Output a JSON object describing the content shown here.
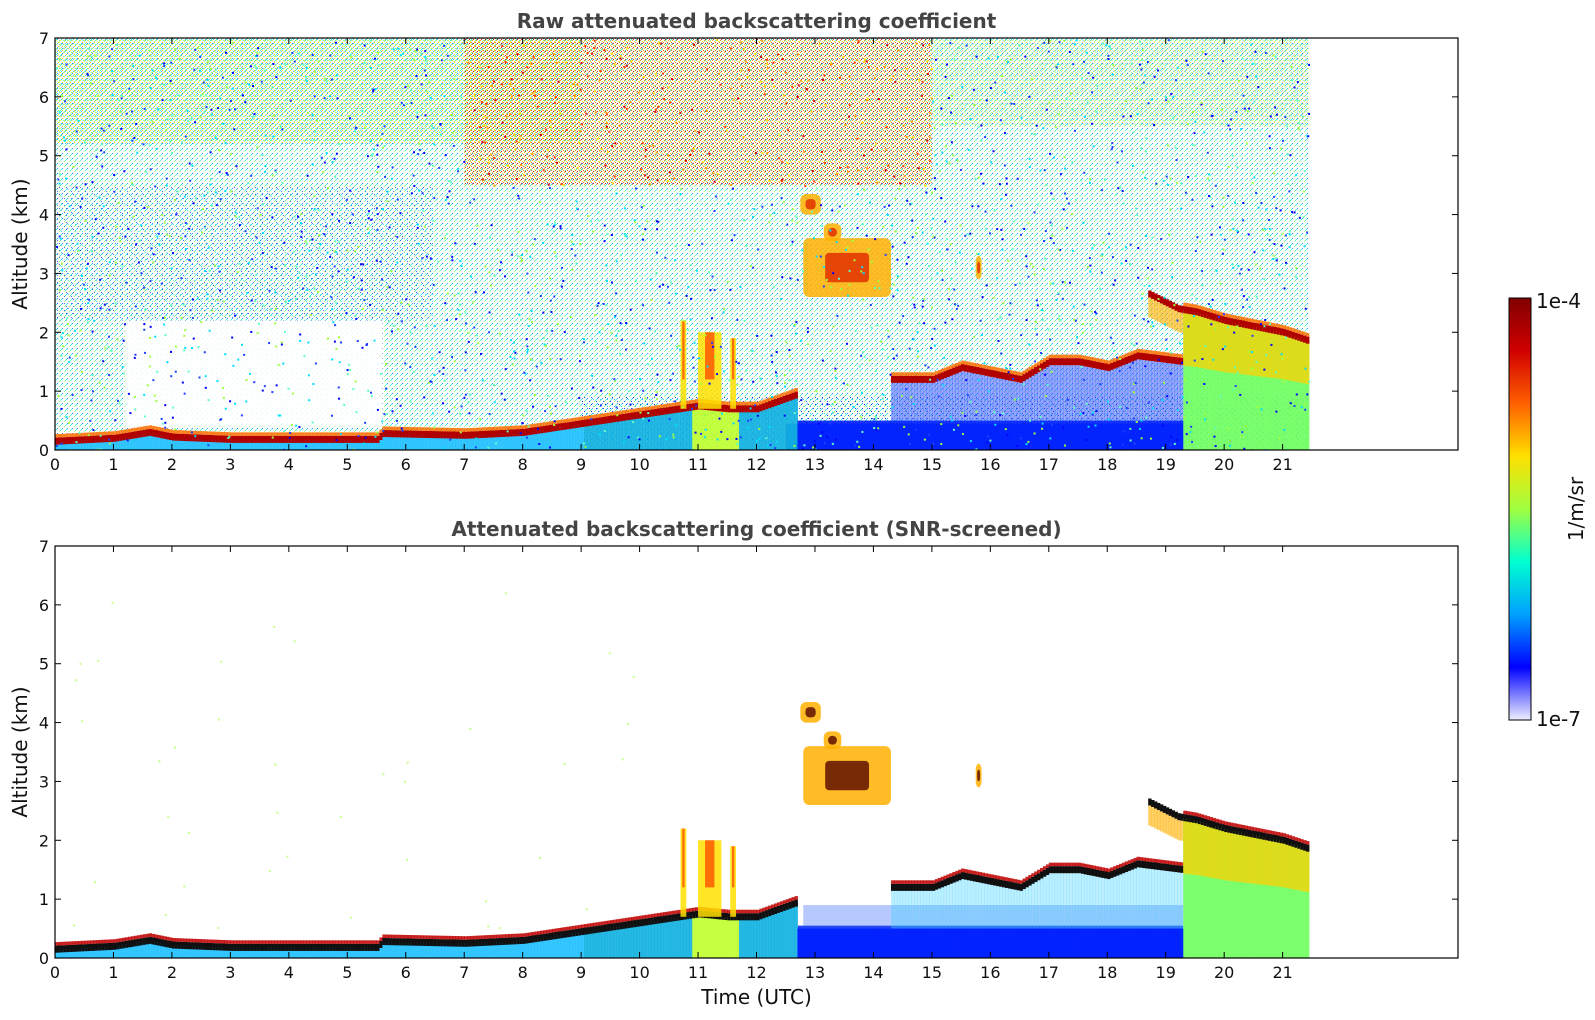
{
  "chart_data": [
    {
      "type": "heatmap",
      "title": "Raw attenuated backscattering coefficient",
      "xlabel": "",
      "ylabel": "Altitude (km)",
      "xlim": [
        0,
        24
      ],
      "ylim": [
        0,
        7
      ],
      "x_ticks": [
        "0",
        "1",
        "2",
        "3",
        "4",
        "5",
        "6",
        "7",
        "8",
        "9",
        "10",
        "11",
        "12",
        "13",
        "14",
        "15",
        "16",
        "17",
        "18",
        "19",
        "20",
        "21"
      ],
      "y_ticks": [
        "0",
        "1",
        "2",
        "3",
        "4",
        "5",
        "6",
        "7"
      ],
      "data_end_hour": 21.45,
      "features": {
        "boundary_layer_top_km": [
          [
            0,
            0.15
          ],
          [
            1,
            0.2
          ],
          [
            1.6,
            0.3
          ],
          [
            2,
            0.22
          ],
          [
            3,
            0.18
          ],
          [
            5.5,
            0.18
          ],
          [
            5.6,
            0.28
          ],
          [
            7,
            0.25
          ],
          [
            8,
            0.3
          ],
          [
            9,
            0.45
          ],
          [
            10,
            0.6
          ],
          [
            11,
            0.75
          ],
          [
            11.5,
            0.7
          ],
          [
            12,
            0.7
          ],
          [
            12.7,
            0.95
          ]
        ],
        "elevated_layer_km": [
          [
            14.3,
            1.2
          ],
          [
            15,
            1.2
          ],
          [
            15.5,
            1.4
          ],
          [
            16,
            1.3
          ],
          [
            16.5,
            1.2
          ],
          [
            17,
            1.5
          ],
          [
            17.5,
            1.5
          ],
          [
            18,
            1.4
          ],
          [
            18.5,
            1.6
          ],
          [
            19.3,
            1.5
          ]
        ],
        "upper_cloud_layer_km": [
          [
            18.7,
            2.65
          ],
          [
            19.2,
            2.4
          ],
          [
            19.5,
            2.35
          ],
          [
            20,
            2.2
          ],
          [
            20.5,
            2.1
          ],
          [
            21,
            2.0
          ],
          [
            21.45,
            1.85
          ]
        ],
        "mid_level_clouds": [
          {
            "x": [
              12.75,
              13.1
            ],
            "alt": [
              4.0,
              4.35
            ]
          },
          {
            "x": [
              13.15,
              13.45
            ],
            "alt": [
              3.55,
              3.85
            ]
          },
          {
            "x": [
              12.8,
              14.3
            ],
            "alt": [
              2.6,
              3.6
            ]
          },
          {
            "x": [
              15.75,
              15.85
            ],
            "alt": [
              2.9,
              3.3
            ]
          }
        ]
      }
    },
    {
      "type": "heatmap",
      "title": "Attenuated backscattering coefficient (SNR-screened)",
      "xlabel": "Time (UTC)",
      "ylabel": "Altitude (km)",
      "xlim": [
        0,
        24
      ],
      "ylim": [
        0,
        7
      ],
      "x_ticks": [
        "0",
        "1",
        "2",
        "3",
        "4",
        "5",
        "6",
        "7",
        "8",
        "9",
        "10",
        "11",
        "12",
        "13",
        "14",
        "15",
        "16",
        "17",
        "18",
        "19",
        "20",
        "21"
      ],
      "y_ticks": [
        "0",
        "1",
        "2",
        "3",
        "4",
        "5",
        "6",
        "7"
      ],
      "data_end_hour": 21.45
    }
  ],
  "colorbar": {
    "label": "1/m/sr",
    "max_label": "1e-4",
    "min_label": "1e-7",
    "colormap": "jet",
    "colors": [
      "#eeeeff",
      "#0000ff",
      "#00a0ff",
      "#00ffd0",
      "#a0ff40",
      "#ffe000",
      "#ff6000",
      "#d00000",
      "#800000"
    ]
  }
}
